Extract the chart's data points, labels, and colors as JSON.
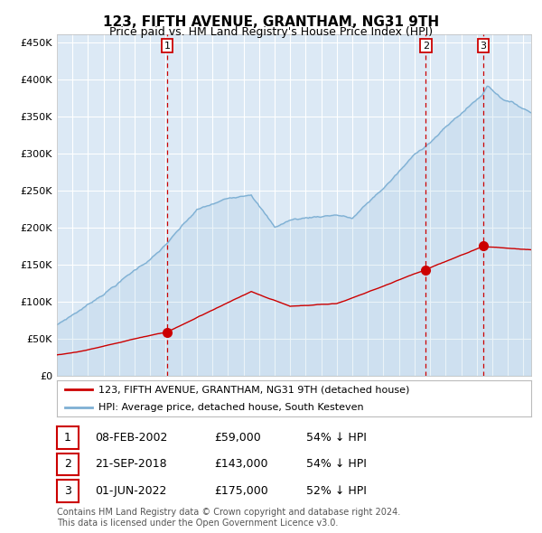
{
  "title": "123, FIFTH AVENUE, GRANTHAM, NG31 9TH",
  "subtitle": "Price paid vs. HM Land Registry's House Price Index (HPI)",
  "bg_color": "#dce9f5",
  "grid_color": "#ffffff",
  "red_line_color": "#cc0000",
  "blue_line_color": "#7eb0d4",
  "ylim": [
    0,
    460000
  ],
  "yticks": [
    0,
    50000,
    100000,
    150000,
    200000,
    250000,
    300000,
    350000,
    400000,
    450000
  ],
  "ytick_labels": [
    "£0",
    "£50K",
    "£100K",
    "£150K",
    "£200K",
    "£250K",
    "£300K",
    "£350K",
    "£400K",
    "£450K"
  ],
  "sale1_date": 2002.08,
  "sale1_price": 59000,
  "sale1_label": "1",
  "sale2_date": 2018.72,
  "sale2_price": 143000,
  "sale2_label": "2",
  "sale3_date": 2022.42,
  "sale3_price": 175000,
  "sale3_label": "3",
  "legend_red": "123, FIFTH AVENUE, GRANTHAM, NG31 9TH (detached house)",
  "legend_blue": "HPI: Average price, detached house, South Kesteven",
  "table_rows": [
    [
      "1",
      "08-FEB-2002",
      "£59,000",
      "54% ↓ HPI"
    ],
    [
      "2",
      "21-SEP-2018",
      "£143,000",
      "54% ↓ HPI"
    ],
    [
      "3",
      "01-JUN-2022",
      "£175,000",
      "52% ↓ HPI"
    ]
  ],
  "footnote1": "Contains HM Land Registry data © Crown copyright and database right 2024.",
  "footnote2": "This data is licensed under the Open Government Licence v3.0.",
  "xmin": 1995.0,
  "xmax": 2025.5
}
